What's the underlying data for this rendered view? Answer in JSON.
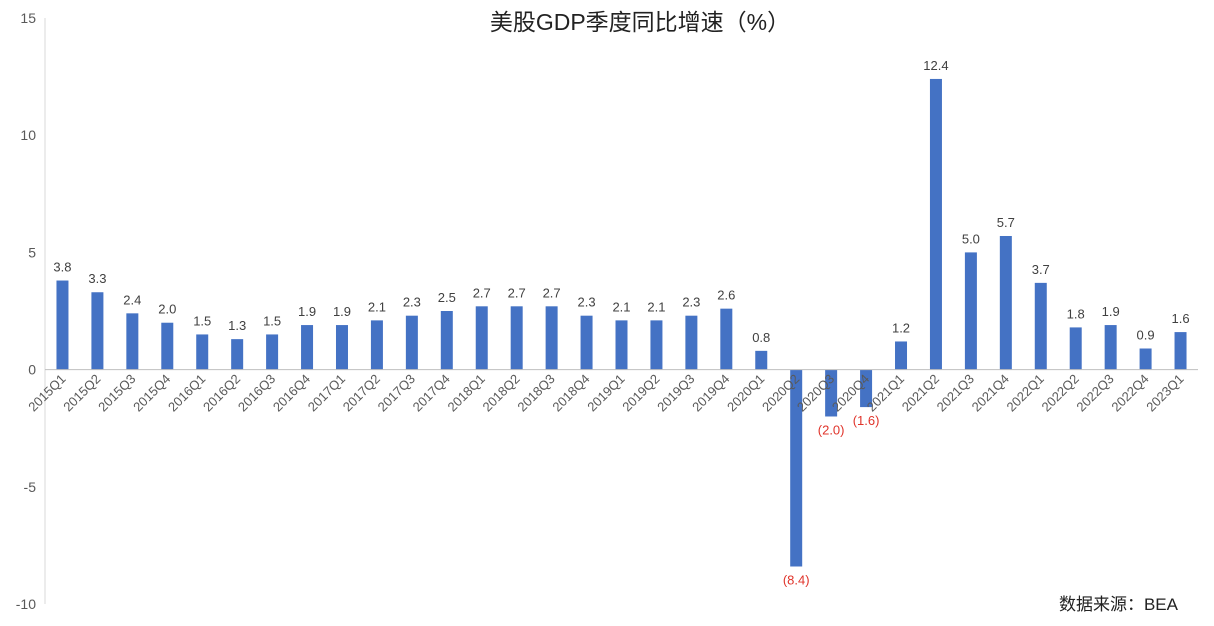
{
  "chart_data": {
    "type": "bar",
    "title": "美股GDP季度同比增速（%）",
    "source": "数据来源：BEA",
    "ylim": [
      -10,
      15
    ],
    "yticks": [
      "15",
      "10",
      "5",
      "0",
      "-5",
      "-10"
    ],
    "grid": false,
    "legend": "none",
    "bar_color": "#4472C4",
    "negative_label_color": "#E0342B",
    "categories": [
      "2015Q1",
      "2015Q2",
      "2015Q3",
      "2015Q4",
      "2016Q1",
      "2016Q2",
      "2016Q3",
      "2016Q4",
      "2017Q1",
      "2017Q2",
      "2017Q3",
      "2017Q4",
      "2018Q1",
      "2018Q2",
      "2018Q3",
      "2018Q4",
      "2019Q1",
      "2019Q2",
      "2019Q3",
      "2019Q4",
      "2020Q1",
      "2020Q2",
      "2020Q3",
      "2020Q4",
      "2021Q1",
      "2021Q2",
      "2021Q3",
      "2021Q4",
      "2022Q1",
      "2022Q2",
      "2022Q3",
      "2022Q4",
      "2023Q1"
    ],
    "values": [
      3.8,
      3.3,
      2.4,
      2.0,
      1.5,
      1.3,
      1.5,
      1.9,
      1.9,
      2.1,
      2.3,
      2.5,
      2.7,
      2.7,
      2.7,
      2.3,
      2.1,
      2.1,
      2.3,
      2.6,
      0.8,
      -8.4,
      -2.0,
      -1.6,
      1.2,
      12.4,
      5.0,
      5.7,
      3.7,
      1.8,
      1.9,
      0.9,
      1.6
    ],
    "value_labels": [
      "3.8",
      "3.3",
      "2.4",
      "2.0",
      "1.5",
      "1.3",
      "1.5",
      "1.9",
      "1.9",
      "2.1",
      "2.3",
      "2.5",
      "2.7",
      "2.7",
      "2.7",
      "2.3",
      "2.1",
      "2.1",
      "2.3",
      "2.6",
      "0.8",
      "(8.4)",
      "(2.0)",
      "(1.6)",
      "1.2",
      "12.4",
      "5.0",
      "5.7",
      "3.7",
      "1.8",
      "1.9",
      "0.9",
      "1.6"
    ]
  }
}
